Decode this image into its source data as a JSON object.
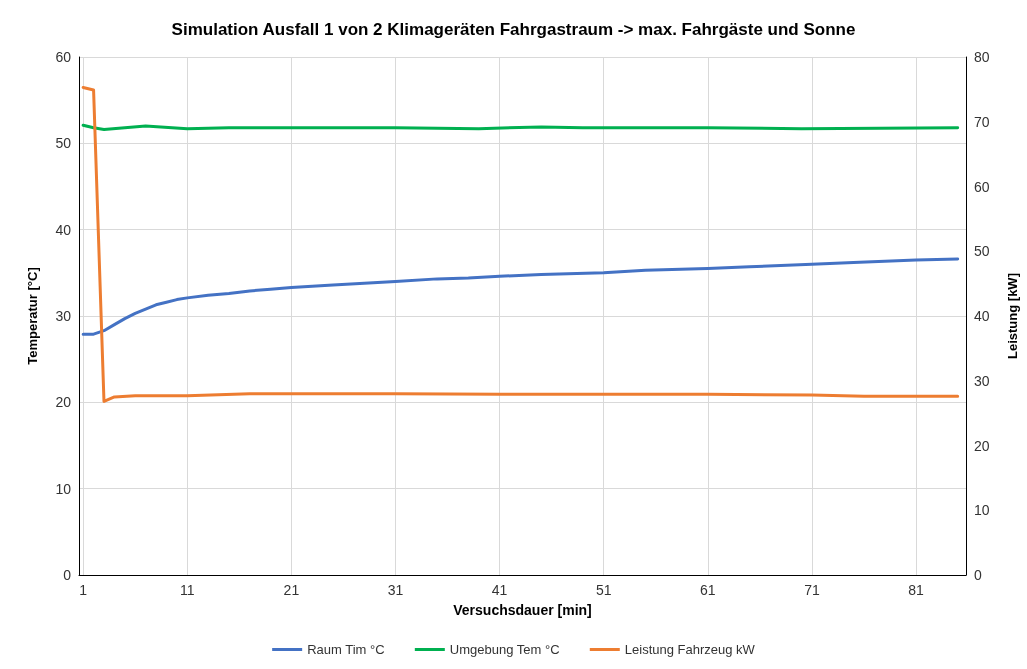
{
  "chart_data": {
    "type": "line",
    "title": "Simulation Ausfall 1 von 2 Klimageräten Fahrgastraum -> max. Fahrgäste und Sonne",
    "xlabel": "Versuchsdauer [min]",
    "ylabel": "Temperatur [°C]",
    "y2label": "Leistung [kW]",
    "xlim": [
      0.6,
      85.8
    ],
    "xticks": [
      1,
      11,
      21,
      31,
      41,
      51,
      61,
      71,
      81
    ],
    "ylim": [
      0,
      60
    ],
    "yticks": [
      0,
      10,
      20,
      30,
      40,
      50,
      60
    ],
    "y2lim": [
      0,
      80
    ],
    "y2ticks": [
      0,
      10,
      20,
      30,
      40,
      50,
      60,
      70,
      80
    ],
    "grid": true,
    "legend": "bottom",
    "marker": "none",
    "line_style": "solid",
    "series": [
      {
        "name": "Raum Tim °C",
        "color": "#4472c4",
        "x": [
          1,
          2,
          3,
          4,
          5,
          6,
          7,
          8,
          9,
          10,
          11,
          13,
          15,
          17,
          19,
          21,
          25,
          28,
          31,
          35,
          38,
          41,
          45,
          51,
          55,
          61,
          65,
          71,
          75,
          81,
          85
        ],
        "values": [
          27.9,
          27.9,
          28.3,
          29.0,
          29.7,
          30.3,
          30.8,
          31.3,
          31.6,
          31.9,
          32.1,
          32.4,
          32.6,
          32.9,
          33.1,
          33.3,
          33.6,
          33.8,
          34.0,
          34.3,
          34.4,
          34.6,
          34.8,
          35.0,
          35.3,
          35.5,
          35.7,
          36.0,
          36.2,
          36.5,
          36.6
        ]
      },
      {
        "name": "Umgebung Tem °C",
        "color": "#00b050",
        "x": [
          1,
          2,
          3,
          7,
          11,
          15,
          21,
          31,
          39,
          45,
          49,
          61,
          70,
          85
        ],
        "values": [
          52.1,
          51.8,
          51.6,
          52.0,
          51.7,
          51.8,
          51.8,
          51.8,
          51.7,
          51.9,
          51.8,
          51.8,
          51.7,
          51.8
        ]
      },
      {
        "name": "Leistung Fahrzeug kW",
        "color": "#ed7d31",
        "axis": "y2",
        "x": [
          1,
          2,
          3,
          4,
          6,
          11,
          17,
          31,
          41,
          51,
          61,
          71,
          76,
          85
        ],
        "values": [
          75.3,
          74.9,
          26.8,
          27.5,
          27.7,
          27.7,
          28.0,
          28.0,
          27.9,
          27.9,
          27.9,
          27.8,
          27.6,
          27.6
        ]
      }
    ]
  }
}
